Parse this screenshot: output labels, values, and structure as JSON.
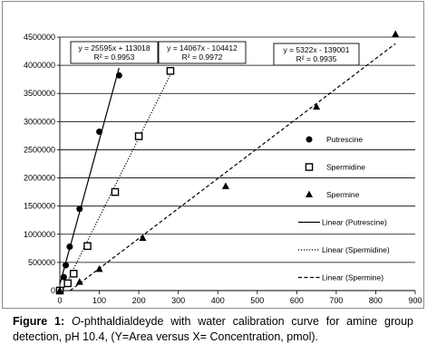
{
  "chart_data": {
    "type": "scatter",
    "title": "",
    "xlabel": "",
    "ylabel": "",
    "xlim": [
      0,
      900
    ],
    "ylim": [
      0,
      4500000
    ],
    "x_ticks": [
      0,
      100,
      200,
      300,
      400,
      500,
      600,
      700,
      800,
      900
    ],
    "y_ticks": [
      0,
      500000,
      1000000,
      1500000,
      2000000,
      2500000,
      3000000,
      3500000,
      4000000,
      4500000
    ],
    "x_tick_labels": [
      "0",
      "100",
      "200",
      "300",
      "400",
      "500",
      "600",
      "700",
      "800",
      "900"
    ],
    "y_tick_labels": [
      "0",
      "500000",
      "1000000",
      "1500000",
      "2000000",
      "2500000",
      "3000000",
      "3500000",
      "4000000",
      "4500000"
    ],
    "grid": "horizontal",
    "legend_position": "right",
    "series": [
      {
        "name": "Putrescine",
        "marker": "circle",
        "color": "#000000",
        "x": [
          0,
          10,
          15,
          25,
          50,
          100,
          150
        ],
        "y": [
          0,
          240000,
          450000,
          780000,
          1450000,
          2820000,
          3820000
        ]
      },
      {
        "name": "Spermidine",
        "marker": "square",
        "color": "#000000",
        "x": [
          0,
          20,
          35,
          70,
          140,
          200,
          280
        ],
        "y": [
          0,
          130000,
          300000,
          790000,
          1750000,
          2740000,
          3900000
        ]
      },
      {
        "name": "Spermine",
        "marker": "triangle",
        "color": "#000000",
        "x": [
          0,
          50,
          100,
          210,
          420,
          650,
          850
        ],
        "y": [
          0,
          150000,
          380000,
          930000,
          1850000,
          3260000,
          4550000
        ]
      }
    ],
    "trendlines": [
      {
        "name": "Linear (Putrescine)",
        "style": "solid",
        "slope": 25595,
        "intercept": 113018,
        "x_range": [
          0,
          150
        ],
        "equation": "y = 25595x + 113018",
        "r2": "R² = 0.9953"
      },
      {
        "name": "Linear (Spermidine)",
        "style": "dotted",
        "slope": 14067,
        "intercept": -104412,
        "x_range": [
          0,
          280
        ],
        "equation": "y = 14067x - 104412",
        "r2": "R² = 0.9972"
      },
      {
        "name": "Linear (Spermine)",
        "style": "dashed",
        "slope": 5322,
        "intercept": -139001,
        "x_range": [
          0,
          850
        ],
        "equation": "y = 5322x - 139001",
        "r2": "R² = 0.9935"
      }
    ]
  },
  "caption": {
    "label": "Figure 1:",
    "italic_part": "O",
    "text": "-phthaldialdeyde with water calibration curve for amine group detection, pH 10.4, (Y=Area versus X= Concentration, pmol)."
  }
}
